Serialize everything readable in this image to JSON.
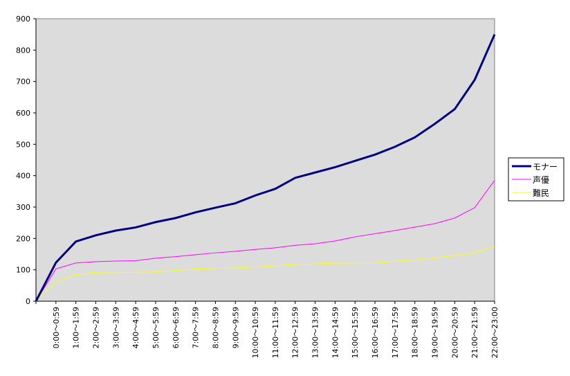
{
  "chart_data": {
    "type": "line",
    "categories": [
      null,
      "0:00～0:59",
      "1:00～1:59",
      "2:00～2:59",
      "3:00～3:59",
      "4:00～4:59",
      "5:00～5:59",
      "6:00～6:59",
      "7:00～7:59",
      "8:00～8:59",
      "9:00～9:59",
      "10:00～10:59",
      "11:00～11:59",
      "12:00～12:59",
      "13:00～13:59",
      "14:00～14:59",
      "15:00～15:59",
      "16:00～16:59",
      "17:00～17:59",
      "18:00～18:59",
      "19:00～19:59",
      "20:00～20:59",
      "21:00～21:59",
      "22:00～23:00"
    ],
    "series": [
      {
        "name": "モナー",
        "color": "#000080",
        "values": [
          0,
          123,
          190,
          210,
          225,
          235,
          252,
          265,
          283,
          298,
          312,
          337,
          358,
          393,
          410,
          427,
          447,
          467,
          492,
          522,
          565,
          612,
          705,
          850
        ]
      },
      {
        "name": "声優",
        "color": "#ff00ff",
        "values": [
          0,
          103,
          122,
          126,
          128,
          129,
          137,
          142,
          148,
          154,
          159,
          165,
          170,
          178,
          183,
          192,
          205,
          215,
          225,
          236,
          247,
          265,
          298,
          385
        ]
      },
      {
        "name": "難民",
        "color": "#ffff00",
        "values": [
          0,
          60,
          85,
          90,
          91,
          92,
          93,
          98,
          102,
          104,
          106,
          109,
          113,
          117,
          119,
          121,
          122,
          123,
          127,
          131,
          138,
          145,
          155,
          175
        ]
      }
    ],
    "ylim": [
      0,
      900
    ],
    "yticks": [
      0,
      100,
      200,
      300,
      400,
      500,
      600,
      700,
      800,
      900
    ],
    "grid": false,
    "legend": "right",
    "plot_background": "#dcdcdc"
  }
}
